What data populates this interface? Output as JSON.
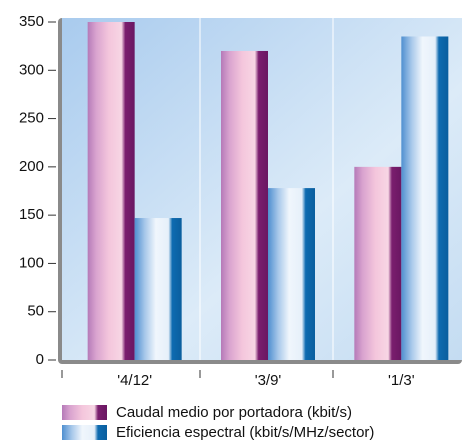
{
  "chart_data": {
    "type": "bar",
    "categories": [
      "'4/12'",
      "'3/9'",
      "'1/3'"
    ],
    "series": [
      {
        "name": "Caudal medio por portadora (kbit/s)",
        "color": "#f4c6dc",
        "values": [
          350,
          320,
          200
        ]
      },
      {
        "name": "Eficiencia espectral (kbit/s/MHz/sector)",
        "color": "#4f8fd0",
        "values": [
          147,
          178,
          335
        ]
      }
    ],
    "ylim": [
      0,
      350
    ],
    "yticks": [
      0,
      50,
      100,
      150,
      200,
      250,
      300,
      350
    ]
  }
}
